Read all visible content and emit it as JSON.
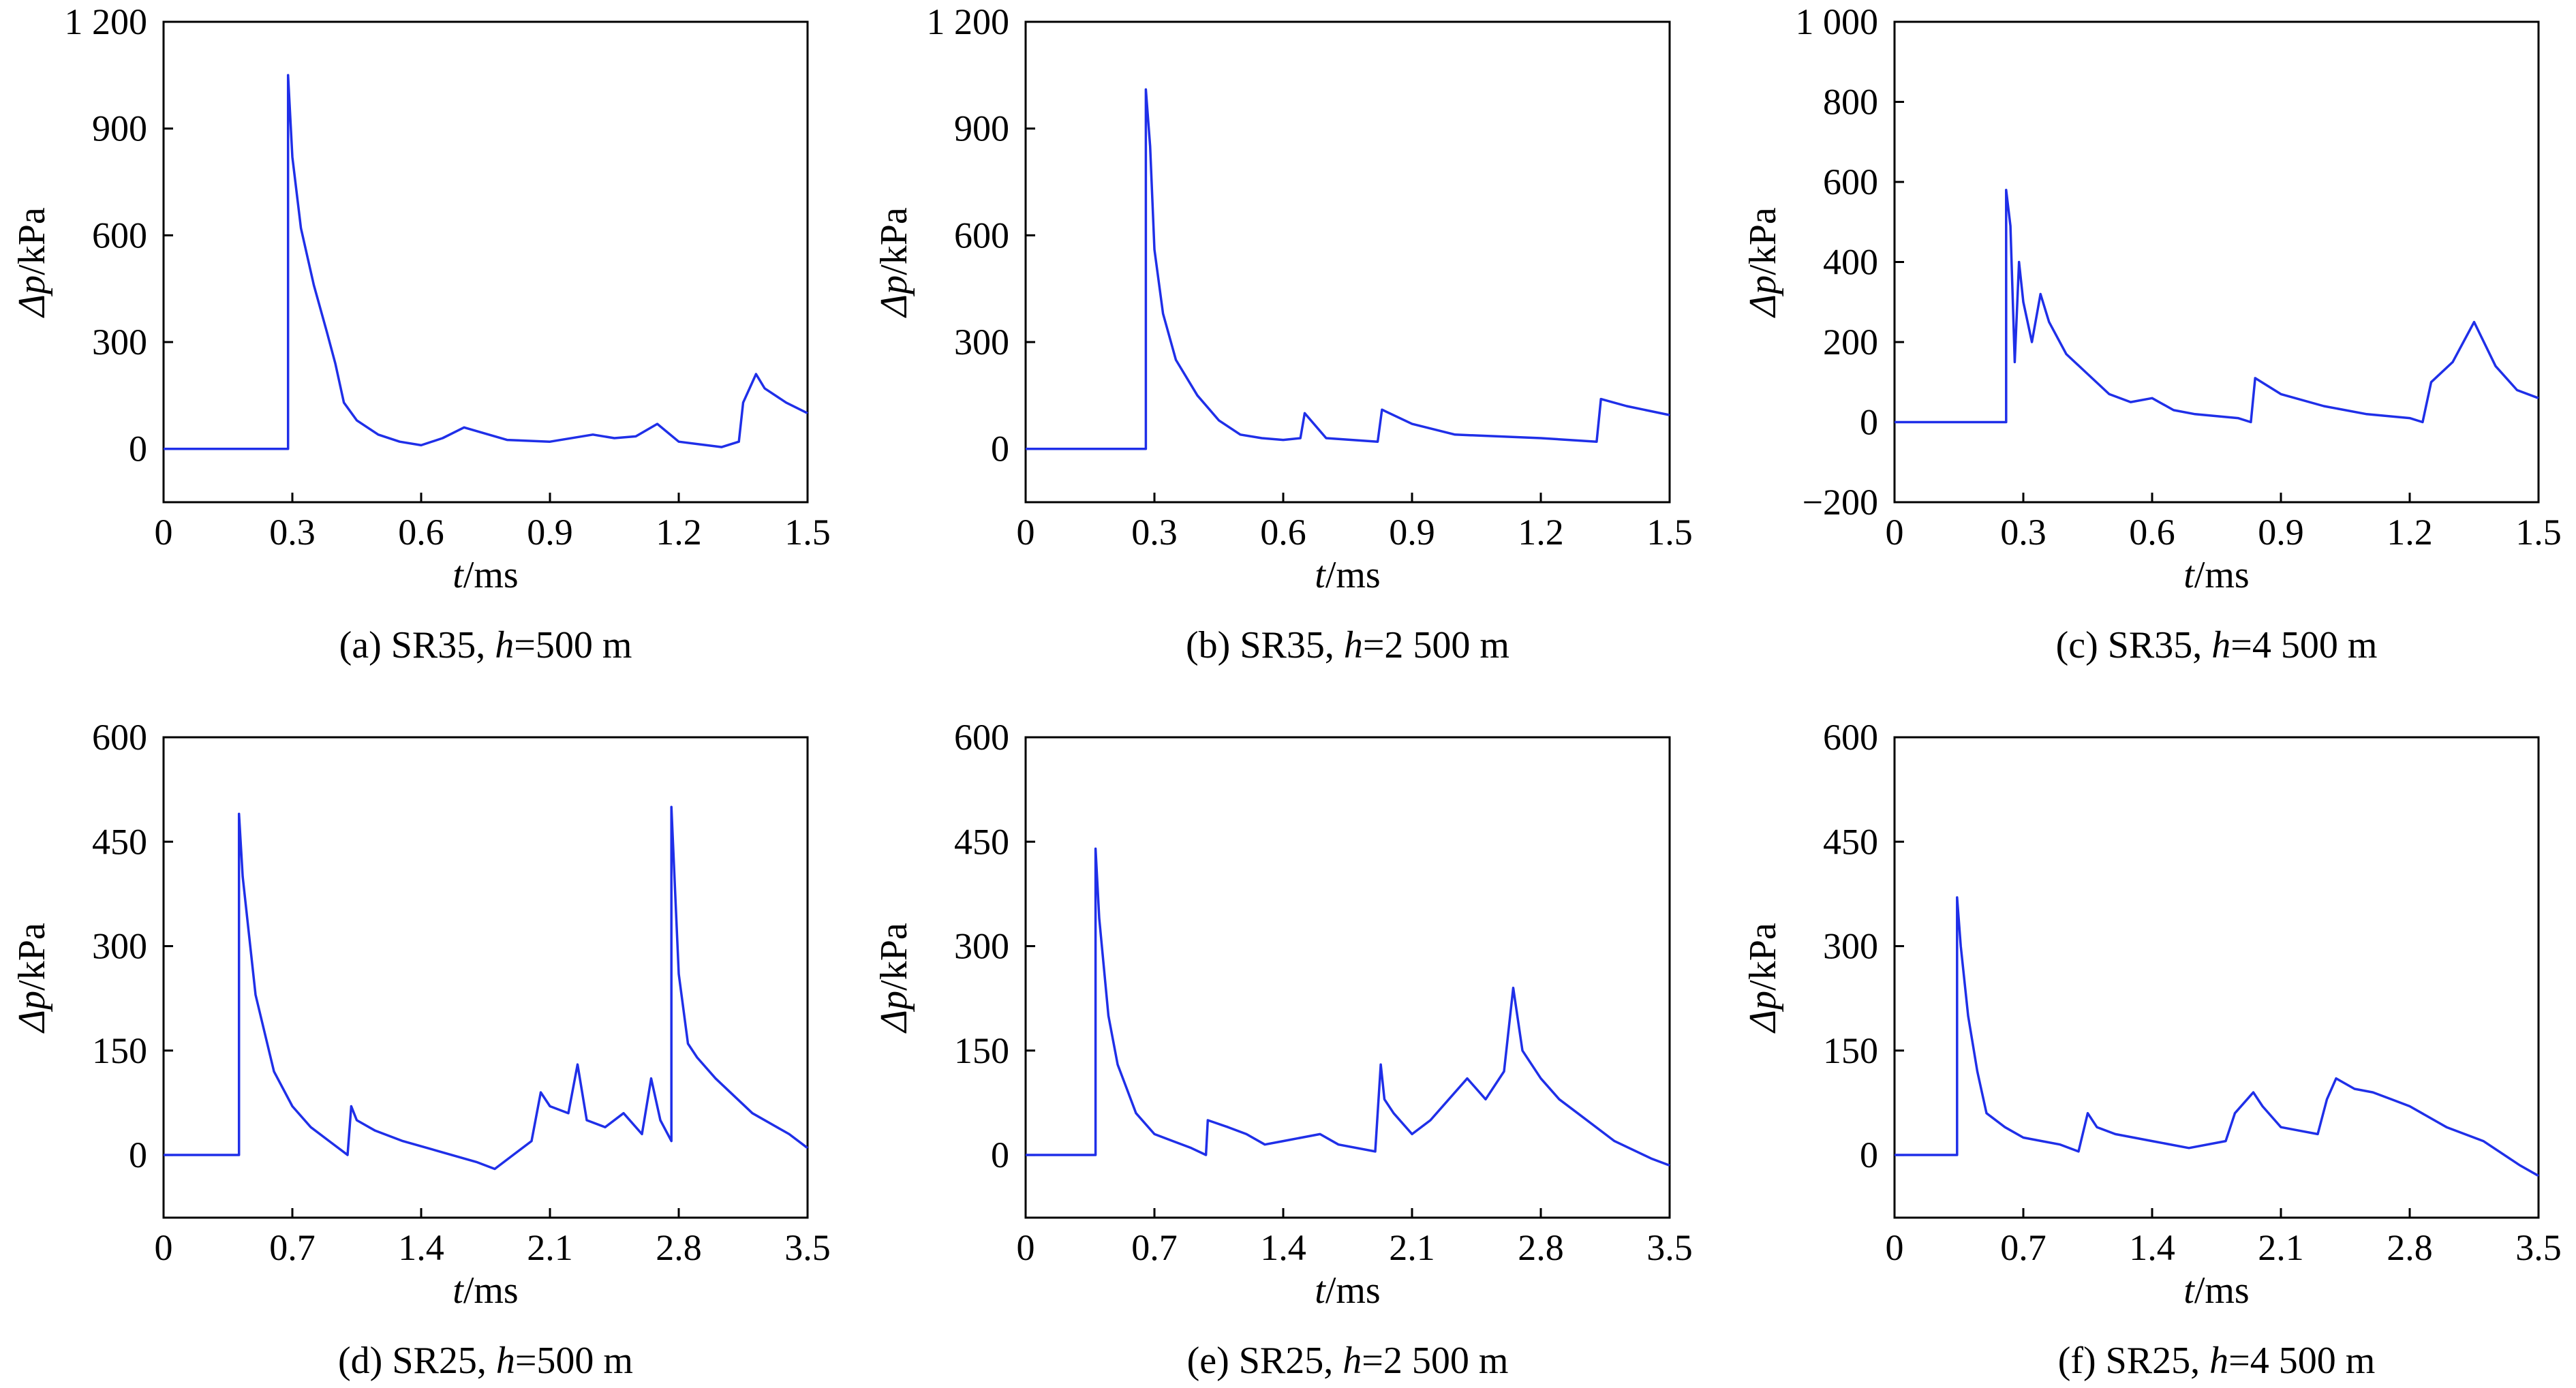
{
  "figure": {
    "colors": {
      "series": "#1f2fe8",
      "axis": "#000000",
      "background": "#ffffff"
    },
    "panels": [
      {
        "caption_prefix": "(a) SR35, ",
        "caption_var": "h",
        "caption_suffix": "=500 m",
        "xlabel_var": "t",
        "xlabel_unit": "/ms",
        "ylabel_var": "Δp",
        "ylabel_unit": "/kPa"
      },
      {
        "caption_prefix": "(b) SR35, ",
        "caption_var": "h",
        "caption_suffix": "=2 500 m",
        "xlabel_var": "t",
        "xlabel_unit": "/ms",
        "ylabel_var": "Δp",
        "ylabel_unit": "/kPa"
      },
      {
        "caption_prefix": "(c) SR35, ",
        "caption_var": "h",
        "caption_suffix": "=4 500 m",
        "xlabel_var": "t",
        "xlabel_unit": "/ms",
        "ylabel_var": "Δp",
        "ylabel_unit": "/kPa"
      },
      {
        "caption_prefix": "(d) SR25, ",
        "caption_var": "h",
        "caption_suffix": "=500 m",
        "xlabel_var": "t",
        "xlabel_unit": "/ms",
        "ylabel_var": "Δp",
        "ylabel_unit": "/kPa"
      },
      {
        "caption_prefix": "(e) SR25, ",
        "caption_var": "h",
        "caption_suffix": "=2 500 m",
        "xlabel_var": "t",
        "xlabel_unit": "/ms",
        "ylabel_var": "Δp",
        "ylabel_unit": "/kPa"
      },
      {
        "caption_prefix": "(f) SR25, ",
        "caption_var": "h",
        "caption_suffix": "=4 500 m",
        "xlabel_var": "t",
        "xlabel_unit": "/ms",
        "ylabel_var": "Δp",
        "ylabel_unit": "/kPa"
      }
    ]
  },
  "chart_data": [
    {
      "type": "line",
      "xlim": [
        0,
        1.5
      ],
      "ylim": [
        -150,
        1200
      ],
      "xticks": [
        0,
        0.3,
        0.6,
        0.9,
        1.2,
        1.5
      ],
      "xtick_labels": [
        "0",
        "0.3",
        "0.6",
        "0.9",
        "1.2",
        "1.5"
      ],
      "yticks": [
        0,
        300,
        600,
        900,
        1200
      ],
      "ytick_labels": [
        "0",
        "300",
        "600",
        "900",
        "1 200"
      ],
      "grid": false,
      "series": [
        {
          "x": [
            0,
            0.29,
            0.29,
            0.3,
            0.32,
            0.35,
            0.38,
            0.4,
            0.42,
            0.45,
            0.5,
            0.55,
            0.6,
            0.65,
            0.7,
            0.8,
            0.9,
            1.0,
            1.05,
            1.1,
            1.15,
            1.2,
            1.3,
            1.34,
            1.35,
            1.38,
            1.4,
            1.45,
            1.5
          ],
          "y": [
            0,
            0,
            1050,
            820,
            620,
            460,
            330,
            240,
            130,
            80,
            40,
            20,
            10,
            30,
            60,
            25,
            20,
            40,
            30,
            35,
            70,
            20,
            5,
            20,
            130,
            210,
            170,
            130,
            100
          ]
        }
      ]
    },
    {
      "type": "line",
      "xlim": [
        0,
        1.5
      ],
      "ylim": [
        -150,
        1200
      ],
      "xticks": [
        0,
        0.3,
        0.6,
        0.9,
        1.2,
        1.5
      ],
      "xtick_labels": [
        "0",
        "0.3",
        "0.6",
        "0.9",
        "1.2",
        "1.5"
      ],
      "yticks": [
        0,
        300,
        600,
        900,
        1200
      ],
      "ytick_labels": [
        "0",
        "300",
        "600",
        "900",
        "1 200"
      ],
      "grid": false,
      "series": [
        {
          "x": [
            0,
            0.28,
            0.28,
            0.29,
            0.3,
            0.32,
            0.35,
            0.4,
            0.45,
            0.5,
            0.55,
            0.6,
            0.64,
            0.65,
            0.7,
            0.82,
            0.83,
            0.9,
            1.0,
            1.2,
            1.33,
            1.34,
            1.4,
            1.5
          ],
          "y": [
            0,
            0,
            1010,
            850,
            560,
            380,
            250,
            150,
            80,
            40,
            30,
            25,
            30,
            100,
            30,
            20,
            110,
            70,
            40,
            30,
            20,
            140,
            120,
            95
          ]
        }
      ]
    },
    {
      "type": "line",
      "xlim": [
        0,
        1.5
      ],
      "ylim": [
        -200,
        1000
      ],
      "xticks": [
        0,
        0.3,
        0.6,
        0.9,
        1.2,
        1.5
      ],
      "xtick_labels": [
        "0",
        "0.3",
        "0.6",
        "0.9",
        "1.2",
        "1.5"
      ],
      "yticks": [
        -200,
        0,
        200,
        400,
        600,
        800,
        1000
      ],
      "ytick_labels": [
        "−200",
        "0",
        "200",
        "400",
        "600",
        "800",
        "1 000"
      ],
      "grid": false,
      "series": [
        {
          "x": [
            0,
            0.26,
            0.26,
            0.27,
            0.28,
            0.29,
            0.3,
            0.32,
            0.34,
            0.36,
            0.4,
            0.45,
            0.5,
            0.55,
            0.6,
            0.65,
            0.7,
            0.8,
            0.83,
            0.84,
            0.9,
            1.0,
            1.1,
            1.2,
            1.23,
            1.25,
            1.3,
            1.35,
            1.4,
            1.45,
            1.5
          ],
          "y": [
            0,
            0,
            580,
            490,
            150,
            400,
            300,
            200,
            320,
            250,
            170,
            120,
            70,
            50,
            60,
            30,
            20,
            10,
            0,
            110,
            70,
            40,
            20,
            10,
            0,
            100,
            150,
            250,
            140,
            80,
            60
          ]
        }
      ]
    },
    {
      "type": "line",
      "xlim": [
        0,
        3.5
      ],
      "ylim": [
        -90,
        600
      ],
      "xticks": [
        0,
        0.7,
        1.4,
        2.1,
        2.8,
        3.5
      ],
      "xtick_labels": [
        "0",
        "0.7",
        "1.4",
        "2.1",
        "2.8",
        "3.5"
      ],
      "yticks": [
        0,
        150,
        300,
        450,
        600
      ],
      "ytick_labels": [
        "0",
        "150",
        "300",
        "450",
        "600"
      ],
      "grid": false,
      "series": [
        {
          "x": [
            0,
            0.41,
            0.41,
            0.43,
            0.5,
            0.6,
            0.7,
            0.8,
            0.9,
            1.0,
            1.02,
            1.05,
            1.15,
            1.3,
            1.5,
            1.7,
            1.8,
            1.9,
            2.0,
            2.05,
            2.1,
            2.2,
            2.25,
            2.3,
            2.4,
            2.5,
            2.6,
            2.65,
            2.7,
            2.76,
            2.76,
            2.8,
            2.85,
            2.9,
            3.0,
            3.2,
            3.4,
            3.5
          ],
          "y": [
            0,
            0,
            490,
            400,
            230,
            120,
            70,
            40,
            20,
            0,
            70,
            50,
            35,
            20,
            5,
            -10,
            -20,
            0,
            20,
            90,
            70,
            60,
            130,
            50,
            40,
            60,
            30,
            110,
            50,
            20,
            500,
            260,
            160,
            140,
            110,
            60,
            30,
            10
          ]
        }
      ]
    },
    {
      "type": "line",
      "xlim": [
        0,
        3.5
      ],
      "ylim": [
        -90,
        600
      ],
      "xticks": [
        0,
        0.7,
        1.4,
        2.1,
        2.8,
        3.5
      ],
      "xtick_labels": [
        "0",
        "0.7",
        "1.4",
        "2.1",
        "2.8",
        "3.5"
      ],
      "yticks": [
        0,
        150,
        300,
        450,
        600
      ],
      "ytick_labels": [
        "0",
        "150",
        "300",
        "450",
        "600"
      ],
      "grid": false,
      "series": [
        {
          "x": [
            0,
            0.38,
            0.38,
            0.4,
            0.45,
            0.5,
            0.6,
            0.7,
            0.8,
            0.9,
            0.98,
            0.99,
            1.1,
            1.2,
            1.3,
            1.4,
            1.5,
            1.6,
            1.7,
            1.9,
            1.93,
            1.95,
            2.0,
            2.1,
            2.2,
            2.3,
            2.4,
            2.5,
            2.6,
            2.65,
            2.7,
            2.8,
            2.9,
            3.0,
            3.2,
            3.4,
            3.5
          ],
          "y": [
            0,
            0,
            440,
            340,
            200,
            130,
            60,
            30,
            20,
            10,
            0,
            50,
            40,
            30,
            15,
            20,
            25,
            30,
            15,
            5,
            130,
            80,
            60,
            30,
            50,
            80,
            110,
            80,
            120,
            240,
            150,
            110,
            80,
            60,
            20,
            -5,
            -15
          ]
        }
      ]
    },
    {
      "type": "line",
      "xlim": [
        0,
        3.5
      ],
      "ylim": [
        -90,
        600
      ],
      "xticks": [
        0,
        0.7,
        1.4,
        2.1,
        2.8,
        3.5
      ],
      "xtick_labels": [
        "0",
        "0.7",
        "1.4",
        "2.1",
        "2.8",
        "3.5"
      ],
      "yticks": [
        0,
        150,
        300,
        450,
        600
      ],
      "ytick_labels": [
        "0",
        "150",
        "300",
        "450",
        "600"
      ],
      "grid": false,
      "series": [
        {
          "x": [
            0,
            0.34,
            0.34,
            0.36,
            0.4,
            0.45,
            0.5,
            0.6,
            0.7,
            0.8,
            0.9,
            1.0,
            1.05,
            1.1,
            1.2,
            1.4,
            1.6,
            1.8,
            1.85,
            1.95,
            2.0,
            2.1,
            2.2,
            2.3,
            2.35,
            2.4,
            2.5,
            2.6,
            2.7,
            2.8,
            3.0,
            3.2,
            3.4,
            3.5
          ],
          "y": [
            0,
            0,
            370,
            300,
            200,
            120,
            60,
            40,
            25,
            20,
            15,
            5,
            60,
            40,
            30,
            20,
            10,
            20,
            60,
            90,
            70,
            40,
            35,
            30,
            80,
            110,
            95,
            90,
            80,
            70,
            40,
            20,
            -15,
            -30
          ]
        }
      ]
    }
  ]
}
